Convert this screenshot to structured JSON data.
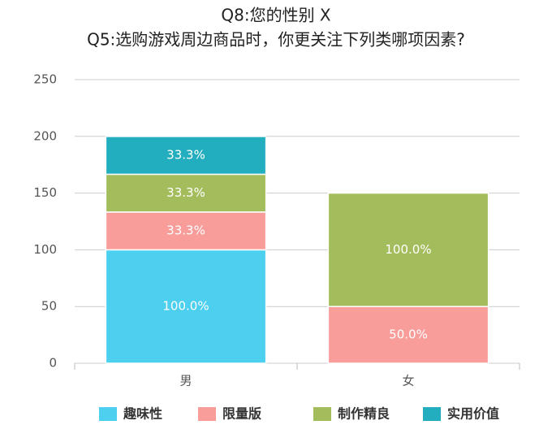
{
  "chart_data": {
    "type": "stacked_bar",
    "title": "Q8:您的性别 X",
    "subtitle": "Q5:选购游戏周边商品时，你更关注下列类哪项因素?",
    "categories": [
      "男",
      "女"
    ],
    "series": [
      {
        "name": "趣味性",
        "color": "#4dcfef",
        "values": [
          100,
          0
        ],
        "value_labels": [
          "100.0%",
          null
        ]
      },
      {
        "name": "限量版",
        "color": "#f99d9b",
        "values": [
          33.3,
          50
        ],
        "value_labels": [
          "33.3%",
          "50.0%"
        ]
      },
      {
        "name": "制作精良",
        "color": "#a3bd5c",
        "values": [
          33.3,
          100
        ],
        "value_labels": [
          "33.3%",
          "100.0%"
        ]
      },
      {
        "name": "实用价值",
        "color": "#23aebf",
        "values": [
          33.3,
          0
        ],
        "value_labels": [
          "33.3%",
          null
        ]
      }
    ],
    "ylim": [
      0,
      250
    ],
    "yticks": [
      0,
      50,
      100,
      150,
      200,
      250
    ],
    "grid": true,
    "legend": "bottom"
  }
}
